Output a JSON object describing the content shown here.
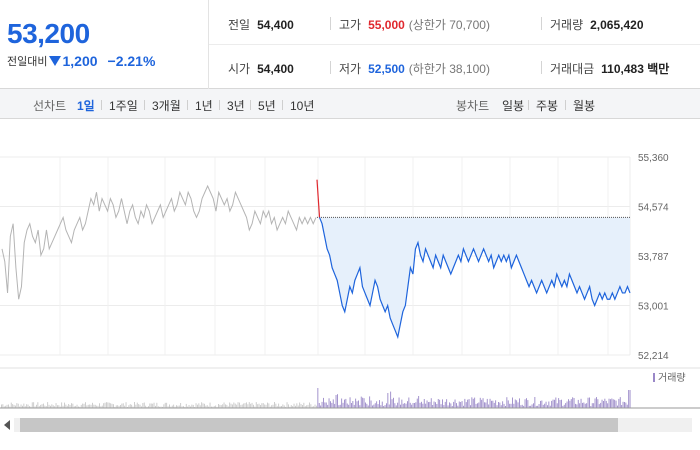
{
  "quote": {
    "price": "53,200",
    "change_label": "전일대비",
    "change_value": "1,200",
    "change_pct": "−2.21%",
    "direction": "down"
  },
  "stats": {
    "prev_close_label": "전일",
    "prev_close": "54,400",
    "high_label": "고가",
    "high": "55,000",
    "upper_limit": "(상한가 70,700)",
    "volume_label": "거래량",
    "volume": "2,065,420",
    "open_label": "시가",
    "open": "54,400",
    "low_label": "저가",
    "low": "52,500",
    "lower_limit": "(하한가 38,100)",
    "amount_label": "거래대금",
    "amount": "110,483 백만"
  },
  "tabs": {
    "line_label": "선차트",
    "line": [
      "1일",
      "1주일",
      "3개월",
      "1년",
      "3년",
      "5년",
      "10년"
    ],
    "active": "1일",
    "candle_label": "봉차트",
    "candle": [
      "일봉",
      "주봉",
      "월봉"
    ]
  },
  "chart_data": {
    "type": "line",
    "y_ticks": [
      "55,360",
      "54,574",
      "53,787",
      "53,001",
      "52,214"
    ],
    "ylim": [
      52214,
      55360
    ],
    "reference_price": 54400,
    "previous_day_series": [
      53900,
      53700,
      53200,
      54100,
      54300,
      53600,
      53100,
      53300,
      54000,
      54200,
      54300,
      54100,
      54000,
      54200,
      53800,
      53900,
      54200,
      53900,
      54000,
      54100,
      54200,
      54300,
      54400,
      54200,
      54100,
      54000,
      54200,
      54300,
      54400,
      54200,
      54300,
      54500,
      54700,
      54600,
      54800,
      54500,
      54700,
      54600,
      54500,
      54700,
      54600,
      54400,
      54500,
      54700,
      54500,
      54300,
      54500,
      54600,
      54400,
      54300,
      54500,
      54400,
      54600,
      54500,
      54300,
      54400,
      54500,
      54600,
      54400,
      54500,
      54600,
      54700,
      54500,
      54600,
      54800,
      54700,
      54600,
      54800,
      54700,
      54500,
      54400,
      54500,
      54700,
      54800,
      54900,
      54800,
      54700,
      54500,
      54800,
      54700,
      54600,
      54700,
      54500,
      54600,
      54800,
      54700,
      54600,
      54500,
      54400,
      54200,
      54300,
      54500,
      54400,
      54300,
      54500,
      54400,
      54500,
      54300,
      54400,
      54200,
      54300,
      54400,
      54300,
      54500,
      54400,
      54300,
      54200,
      54400,
      54300,
      54400,
      54300,
      54400,
      54300,
      54400
    ],
    "today_series": [
      55000,
      54400,
      54300,
      54100,
      53900,
      53800,
      53600,
      53500,
      53400,
      53200,
      53000,
      52900,
      53100,
      53300,
      53200,
      53400,
      53500,
      53600,
      53300,
      53200,
      53100,
      53000,
      53200,
      53400,
      53300,
      53100,
      53000,
      52900,
      53000,
      52800,
      52700,
      52600,
      52500,
      52700,
      52900,
      53000,
      53300,
      53600,
      53500,
      53900,
      54000,
      53800,
      53700,
      53900,
      53800,
      53700,
      53600,
      53800,
      53700,
      53600,
      53800,
      53700,
      53600,
      53500,
      53600,
      53700,
      53800,
      53700,
      53900,
      53800,
      53700,
      53800,
      53900,
      53800,
      53700,
      53800,
      53900,
      53800,
      53700,
      53800,
      53600,
      53700,
      53800,
      53700,
      53800,
      53700,
      53800,
      53600,
      53700,
      53800,
      53700,
      53600,
      53500,
      53400,
      53300,
      53400,
      53300,
      53200,
      53300,
      53400,
      53300,
      53200,
      53300,
      53400,
      53300,
      53500,
      53400,
      53300,
      53400,
      53300,
      53500,
      53400,
      53300,
      53200,
      53300,
      53200,
      53100,
      53200,
      53300,
      53100,
      53000,
      53100,
      53200,
      53100,
      53200,
      53100,
      53100,
      53200,
      53100,
      53200,
      53300,
      53200,
      53200,
      53300,
      53200
    ],
    "volume_label": "거래량",
    "colors": {
      "up": "#e0282e",
      "down": "#1e64dc",
      "prev": "#b4b4b4",
      "fill": "#e6f0fb",
      "volume": "#9a88c8",
      "volume_prev": "#c8c8c8"
    }
  }
}
